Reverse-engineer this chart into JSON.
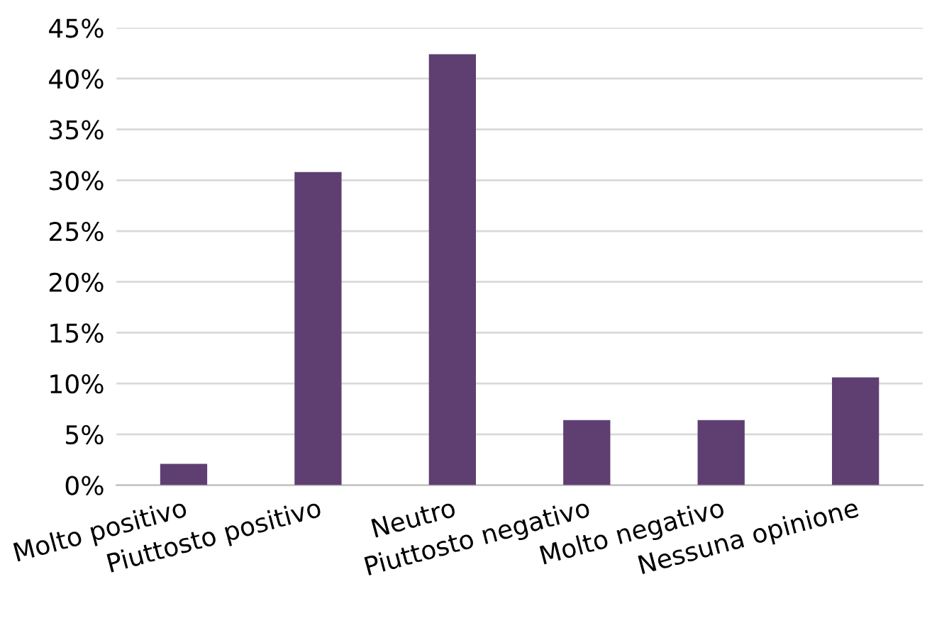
{
  "chart_data": {
    "type": "bar",
    "categories": [
      "Molto positivo",
      "Piuttosto positivo",
      "Neutro",
      "Piuttosto negativo",
      "Molto negativo",
      "Nessuna opinione"
    ],
    "values": [
      2.1,
      30.8,
      42.4,
      6.4,
      6.4,
      10.6
    ],
    "color": "#5f3f72",
    "ylim": [
      0,
      45
    ],
    "yticks": [
      {
        "value": 0,
        "label": "0%"
      },
      {
        "value": 5,
        "label": "5%"
      },
      {
        "value": 10,
        "label": "10%"
      },
      {
        "value": 15,
        "label": "15%"
      },
      {
        "value": 20,
        "label": "20%"
      },
      {
        "value": 25,
        "label": "25%"
      },
      {
        "value": 30,
        "label": "30%"
      },
      {
        "value": 35,
        "label": "35%"
      },
      {
        "value": 40,
        "label": "40%"
      },
      {
        "value": 45,
        "label": "45%"
      }
    ],
    "grid": "y"
  }
}
